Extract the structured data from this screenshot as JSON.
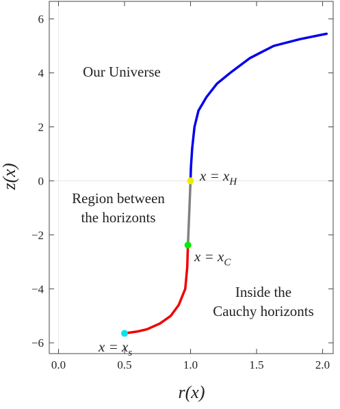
{
  "chart_data": {
    "type": "line",
    "xlabel": "r(x)",
    "ylabel": "z(x)",
    "xlim": [
      -0.07,
      2.08
    ],
    "ylim": [
      -6.4,
      6.65
    ],
    "xticks": [
      {
        "value": 0,
        "label": "0.0"
      },
      0.5,
      {
        "value": 1,
        "label": "1.0"
      },
      1.5,
      {
        "value": 2,
        "label": "2.0"
      }
    ],
    "yticks": [
      {
        "value": -6,
        "label": "−6"
      },
      {
        "value": -4,
        "label": "−4"
      },
      {
        "value": -2,
        "label": "−2"
      },
      0,
      2,
      4,
      6
    ],
    "series": [
      {
        "color": "#0000ee",
        "x": [
          1.0,
          1.003,
          1.012,
          1.03,
          1.06,
          1.12,
          1.2,
          1.3,
          1.45,
          1.63,
          1.83,
          2.03
        ],
        "values": [
          0,
          0.5,
          1.2,
          2,
          2.6,
          3.1,
          3.6,
          4,
          4.55,
          5.0,
          5.25,
          5.45
        ]
      },
      {
        "color": "#808080",
        "x": [
          0.98,
          0.99,
          1.0
        ],
        "values": [
          -2.38,
          -1.2,
          0
        ]
      },
      {
        "color": "#ee0000",
        "x": [
          0.5,
          0.6,
          0.67,
          0.77,
          0.85,
          0.91,
          0.96,
          0.975,
          0.98
        ],
        "values": [
          -5.65,
          -5.58,
          -5.5,
          -5.28,
          -5.0,
          -4.6,
          -4.0,
          -3.2,
          -2.38
        ]
      }
    ],
    "points": [
      {
        "color": "#eeee00",
        "x": 1.0,
        "y": 0
      },
      {
        "color": "#00ee00",
        "x": 0.98,
        "y": -2.38
      },
      {
        "color": "#00e5ee",
        "x": 0.5,
        "y": -5.65
      }
    ],
    "annotations": [
      {
        "lines": [
          "Our Universe"
        ]
      },
      {
        "lines": [
          "Region between",
          "the horizonts"
        ]
      },
      {
        "lines": [
          "Inside the",
          "Cauchy horizonts"
        ]
      }
    ],
    "point_labels": [
      {
        "text": "x = x",
        "sub": "H"
      },
      {
        "text": "x = x",
        "sub": "C"
      },
      {
        "text": "x = x",
        "sub": "s"
      }
    ]
  }
}
